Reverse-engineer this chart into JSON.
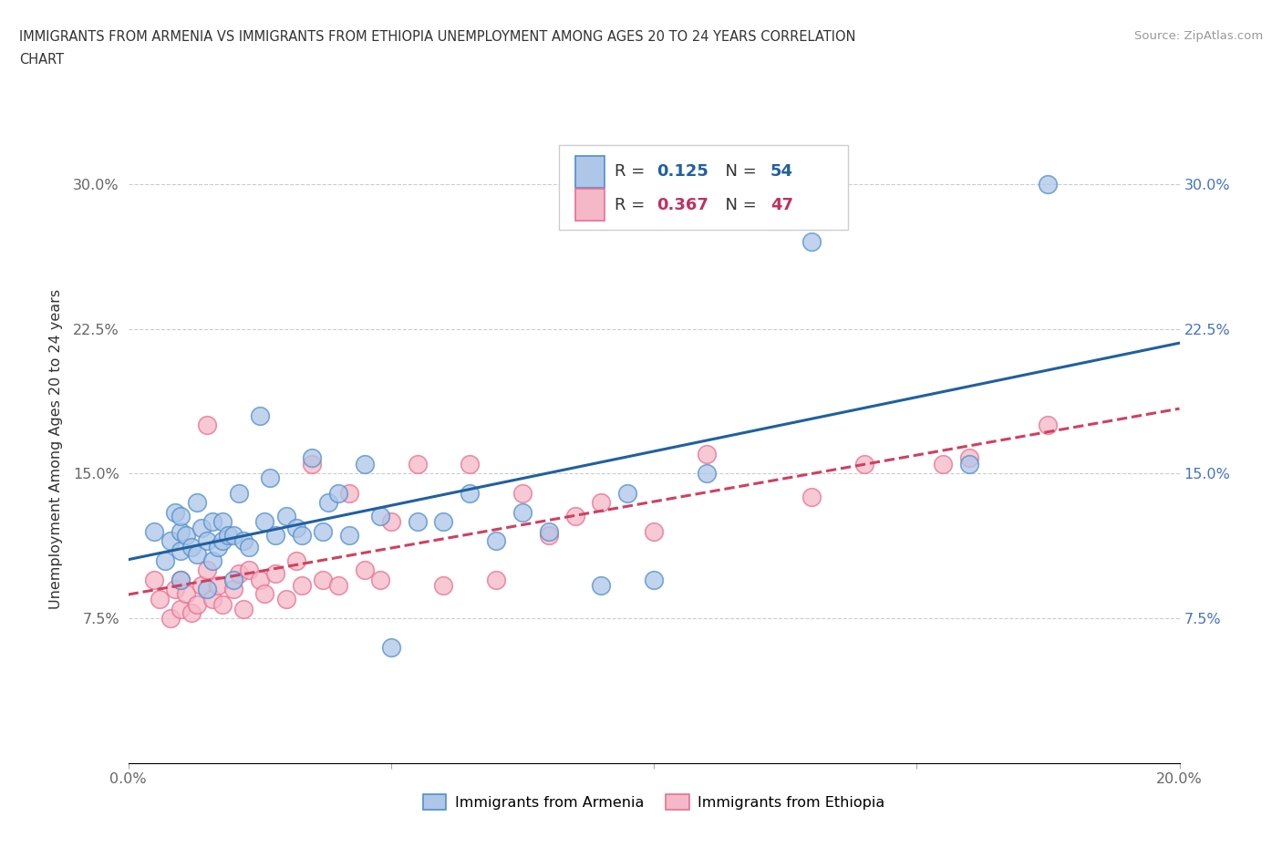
{
  "title_line1": "IMMIGRANTS FROM ARMENIA VS IMMIGRANTS FROM ETHIOPIA UNEMPLOYMENT AMONG AGES 20 TO 24 YEARS CORRELATION",
  "title_line2": "CHART",
  "source": "Source: ZipAtlas.com",
  "ylabel": "Unemployment Among Ages 20 to 24 years",
  "xlim": [
    0.0,
    0.2
  ],
  "ylim": [
    0.0,
    0.325
  ],
  "xticks": [
    0.0,
    0.05,
    0.1,
    0.15,
    0.2
  ],
  "xticklabels": [
    "0.0%",
    "",
    "",
    "",
    "20.0%"
  ],
  "yticks": [
    0.0,
    0.075,
    0.15,
    0.225,
    0.3
  ],
  "yticklabels_left": [
    "",
    "7.5%",
    "15.0%",
    "22.5%",
    "30.0%"
  ],
  "yticklabels_right": [
    "",
    "7.5%",
    "15.0%",
    "22.5%",
    "30.0%"
  ],
  "armenia_color": "#aec6e8",
  "ethiopia_color": "#f5b8c8",
  "armenia_edge": "#4f8fcc",
  "ethiopia_edge": "#e87090",
  "trend_armenia_color": "#2060a0",
  "trend_ethiopia_color": "#d04060",
  "R_armenia": 0.125,
  "N_armenia": 54,
  "R_ethiopia": 0.367,
  "N_ethiopia": 47,
  "armenia_x": [
    0.005,
    0.007,
    0.008,
    0.009,
    0.01,
    0.01,
    0.01,
    0.01,
    0.011,
    0.012,
    0.013,
    0.013,
    0.014,
    0.015,
    0.015,
    0.016,
    0.016,
    0.017,
    0.018,
    0.018,
    0.019,
    0.02,
    0.02,
    0.021,
    0.022,
    0.023,
    0.025,
    0.026,
    0.027,
    0.028,
    0.03,
    0.032,
    0.033,
    0.035,
    0.037,
    0.038,
    0.04,
    0.042,
    0.045,
    0.048,
    0.05,
    0.055,
    0.06,
    0.065,
    0.07,
    0.075,
    0.08,
    0.09,
    0.095,
    0.1,
    0.11,
    0.13,
    0.16,
    0.175
  ],
  "armenia_y": [
    0.12,
    0.105,
    0.115,
    0.13,
    0.095,
    0.11,
    0.12,
    0.128,
    0.118,
    0.112,
    0.108,
    0.135,
    0.122,
    0.09,
    0.115,
    0.105,
    0.125,
    0.112,
    0.115,
    0.125,
    0.118,
    0.095,
    0.118,
    0.14,
    0.115,
    0.112,
    0.18,
    0.125,
    0.148,
    0.118,
    0.128,
    0.122,
    0.118,
    0.158,
    0.12,
    0.135,
    0.14,
    0.118,
    0.155,
    0.128,
    0.06,
    0.125,
    0.125,
    0.14,
    0.115,
    0.13,
    0.12,
    0.092,
    0.14,
    0.095,
    0.15,
    0.27,
    0.155,
    0.3
  ],
  "ethiopia_x": [
    0.005,
    0.006,
    0.008,
    0.009,
    0.01,
    0.01,
    0.011,
    0.012,
    0.013,
    0.014,
    0.015,
    0.015,
    0.016,
    0.017,
    0.018,
    0.02,
    0.021,
    0.022,
    0.023,
    0.025,
    0.026,
    0.028,
    0.03,
    0.032,
    0.033,
    0.035,
    0.037,
    0.04,
    0.042,
    0.045,
    0.048,
    0.05,
    0.055,
    0.06,
    0.065,
    0.07,
    0.075,
    0.08,
    0.085,
    0.09,
    0.1,
    0.11,
    0.13,
    0.14,
    0.155,
    0.16,
    0.175
  ],
  "ethiopia_y": [
    0.095,
    0.085,
    0.075,
    0.09,
    0.08,
    0.095,
    0.088,
    0.078,
    0.082,
    0.092,
    0.1,
    0.175,
    0.085,
    0.092,
    0.082,
    0.09,
    0.098,
    0.08,
    0.1,
    0.095,
    0.088,
    0.098,
    0.085,
    0.105,
    0.092,
    0.155,
    0.095,
    0.092,
    0.14,
    0.1,
    0.095,
    0.125,
    0.155,
    0.092,
    0.155,
    0.095,
    0.14,
    0.118,
    0.128,
    0.135,
    0.12,
    0.16,
    0.138,
    0.155,
    0.155,
    0.158,
    0.175
  ],
  "background_color": "#ffffff",
  "grid_color": "#cccccc",
  "legend_label_armenia": "Immigrants from Armenia",
  "legend_label_ethiopia": "Immigrants from Ethiopia",
  "legend_R_color_armenia": "#2060a0",
  "legend_N_color_armenia": "#2060a0",
  "legend_R_color_ethiopia": "#c03060",
  "legend_N_color_ethiopia": "#c03060"
}
